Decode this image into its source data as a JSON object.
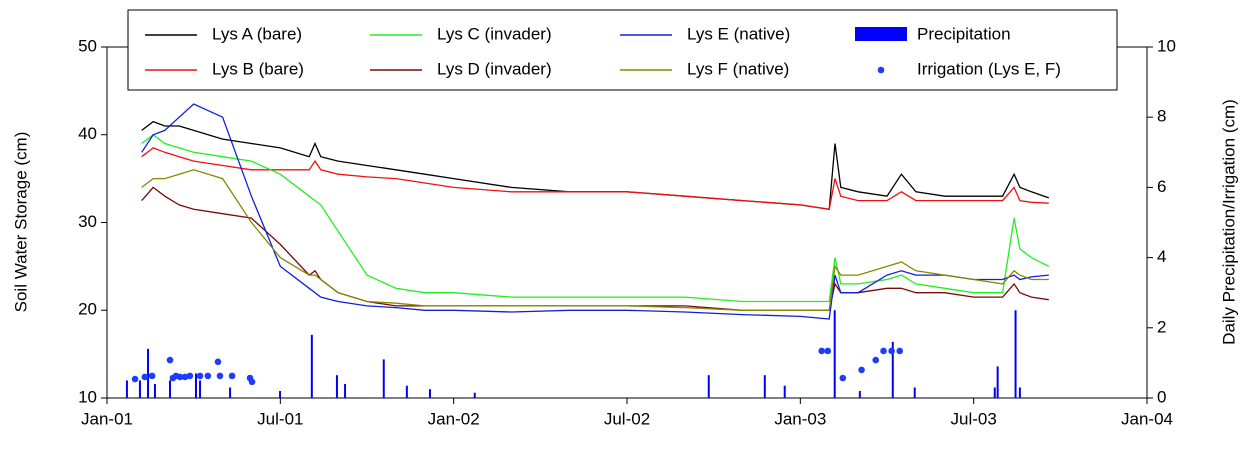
{
  "chart_data": {
    "type": "line",
    "xlabel": null,
    "ylabel": "Soil Water Storage (cm)",
    "y2label": "Daily Precipitation/Irrigation (cm)",
    "xlim": [
      0,
      36
    ],
    "xticks": [
      {
        "value": 0,
        "label": "Jan-01"
      },
      {
        "value": 6,
        "label": "Jul-01"
      },
      {
        "value": 12,
        "label": "Jan-02"
      },
      {
        "value": 18,
        "label": "Jul-02"
      },
      {
        "value": 24,
        "label": "Jan-03"
      },
      {
        "value": 30,
        "label": "Jul-03"
      },
      {
        "value": 36,
        "label": "Jan-04"
      }
    ],
    "ylim": [
      10,
      50
    ],
    "yticks": [
      10,
      20,
      30,
      40,
      50
    ],
    "y2lim": [
      0,
      10
    ],
    "y2ticks": [
      0,
      2,
      4,
      6,
      8,
      10
    ],
    "x": [
      1.2,
      1.6,
      2,
      2.5,
      3,
      4,
      5,
      6,
      7,
      7.2,
      7.4,
      8,
      9,
      10,
      11,
      12,
      14,
      16,
      18,
      20,
      22,
      24,
      25,
      25.2,
      25.4,
      26,
      27,
      27.5,
      28,
      29,
      30,
      31,
      31.4,
      31.6,
      32,
      32.6
    ],
    "series": [
      {
        "name": "Lys A (bare)",
        "color": "#000000",
        "values": [
          40.5,
          41.5,
          41,
          41,
          40.5,
          39.5,
          39,
          38.5,
          37.5,
          39,
          37.5,
          37,
          36.5,
          36,
          35.5,
          35,
          34,
          33.5,
          33.5,
          33,
          32.5,
          32,
          31.5,
          39,
          34,
          33.5,
          33,
          35.5,
          33.5,
          33,
          33,
          33,
          35.5,
          34,
          33.5,
          32.8
        ]
      },
      {
        "name": "Lys B (bare)",
        "color": "#ee1111",
        "values": [
          37.5,
          38.5,
          38,
          37.5,
          37,
          36.5,
          36,
          36,
          36,
          37,
          36,
          35.5,
          35.2,
          35,
          34.5,
          34,
          33.5,
          33.5,
          33.5,
          33,
          32.5,
          32,
          31.5,
          35,
          33,
          32.5,
          32.5,
          33.5,
          32.5,
          32.5,
          32.5,
          32.5,
          34,
          32.5,
          32.3,
          32.2
        ]
      },
      {
        "name": "Lys C (invader)",
        "color": "#22ee22",
        "values": [
          39,
          40,
          39,
          38.5,
          38,
          37.5,
          37,
          35.5,
          33,
          32.5,
          32,
          29,
          24,
          22.5,
          22,
          22,
          21.5,
          21.5,
          21.5,
          21.5,
          21,
          21,
          21,
          26,
          23,
          23,
          23.5,
          24,
          23,
          22.5,
          22,
          22,
          30.5,
          27,
          26,
          25
        ]
      },
      {
        "name": "Lys D (invader)",
        "color": "#7a0a0a",
        "values": [
          32.5,
          34,
          33,
          32,
          31.5,
          31,
          30.5,
          27.5,
          24,
          24.5,
          23.5,
          22,
          21,
          20.5,
          20.5,
          20.5,
          20.5,
          20.5,
          20.5,
          20.5,
          20,
          20,
          20,
          23,
          22,
          22,
          22.5,
          22.5,
          22,
          22,
          21.5,
          21.5,
          23,
          22,
          21.5,
          21.2
        ]
      },
      {
        "name": "Lys E (native)",
        "color": "#1020dd",
        "values": [
          38,
          40,
          40.5,
          42,
          43.5,
          42,
          33,
          25,
          22.5,
          22,
          21.5,
          21,
          20.5,
          20.3,
          20,
          20,
          19.8,
          20,
          20,
          19.8,
          19.5,
          19.3,
          19,
          24,
          22,
          22,
          24,
          24.5,
          24,
          24,
          23.5,
          23.5,
          24,
          23.5,
          23.8,
          24
        ]
      },
      {
        "name": "Lys F (native)",
        "color": "#888800",
        "values": [
          34,
          35,
          35,
          35.5,
          36,
          35,
          30,
          26,
          24,
          24,
          23.5,
          22,
          21,
          20.8,
          20.5,
          20.5,
          20.5,
          20.5,
          20.5,
          20.3,
          20,
          20,
          20,
          25,
          24,
          24,
          25,
          25.5,
          24.5,
          24,
          23.5,
          23,
          24.5,
          24,
          23.5,
          23.5
        ]
      },
      {
        "name": "Precipitation",
        "type": "bar",
        "axis": "y2",
        "color": "#0000ff",
        "x": [
          0.69,
          1.14,
          1.42,
          1.66,
          2.18,
          3.08,
          3.22,
          4.26,
          5.99,
          7.09,
          7.96,
          8.24,
          9.58,
          10.38,
          11.18,
          12.73,
          20.83,
          22.77,
          23.46,
          25.19,
          26.06,
          27.2,
          27.96,
          30.73,
          30.83,
          31.45,
          31.6
        ],
        "values": [
          0.5,
          0.5,
          1.4,
          0.4,
          0.5,
          0.7,
          0.5,
          0.3,
          0.2,
          1.8,
          0.65,
          0.4,
          1.1,
          0.35,
          0.25,
          0.15,
          0.65,
          0.65,
          0.35,
          2.5,
          0.2,
          1.6,
          0.3,
          0.3,
          0.9,
          2.5,
          0.3
        ]
      },
      {
        "name": "Irrigation (Lys E, F)",
        "type": "scatter",
        "axis": "y2",
        "color": "#1e3cff",
        "x": [
          0.97,
          1.31,
          1.56,
          2.18,
          2.28,
          2.39,
          2.53,
          2.7,
          2.87,
          3.22,
          3.49,
          3.84,
          3.91,
          4.33,
          4.95,
          5.02,
          24.74,
          24.95,
          25.47,
          26.12,
          26.61,
          26.88,
          27.16,
          27.44
        ],
        "values": [
          0.54,
          0.6,
          0.63,
          1.08,
          0.57,
          0.63,
          0.6,
          0.6,
          0.63,
          0.63,
          0.63,
          1.03,
          0.63,
          0.63,
          0.57,
          0.46,
          1.34,
          1.34,
          0.57,
          0.8,
          1.08,
          1.34,
          1.34,
          1.34
        ]
      }
    ]
  }
}
